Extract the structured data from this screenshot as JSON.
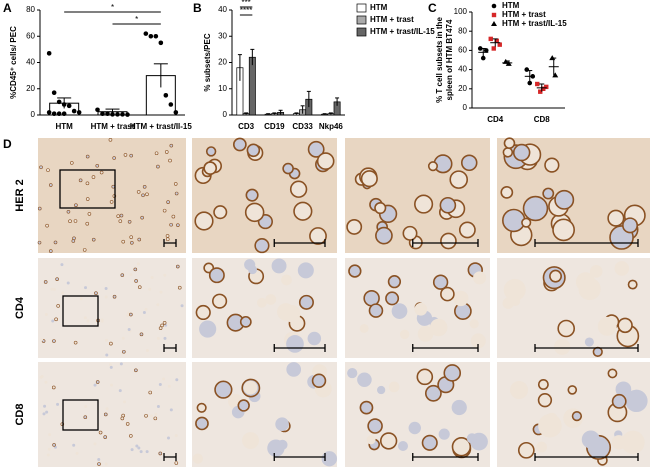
{
  "chart_data": [
    {
      "type": "bar",
      "panel": "A",
      "y_label": "%CD45⁺ cells/ PEC",
      "categories": [
        "HTM",
        "HTM + trast",
        "HTM + trast/Il-15"
      ],
      "values": [
        9,
        2.5,
        30
      ],
      "errors": [
        4,
        2,
        9
      ],
      "color": "#ffffff",
      "points": [
        [
          47,
          17,
          10,
          8,
          7,
          3,
          2,
          2,
          1,
          1,
          1
        ],
        [
          4,
          1,
          1,
          0.5,
          0.5,
          0.5,
          0.3
        ],
        [
          62,
          60,
          60,
          55,
          15,
          8,
          2
        ]
      ],
      "ylim": [
        0,
        80
      ],
      "yticks": [
        0,
        20,
        40,
        60,
        80
      ],
      "annotations": [
        "*",
        "*"
      ]
    },
    {
      "type": "bar",
      "panel": "B",
      "y_label": "% subsets/PEC",
      "categories": [
        "CD3",
        "CD19",
        "CD33",
        "Nkp46"
      ],
      "series": [
        {
          "name": "HTM",
          "color": "#ffffff",
          "values": [
            18,
            0.3,
            0.5,
            0.3
          ],
          "errors": [
            5,
            0.2,
            0.3,
            0.2
          ]
        },
        {
          "name": "HTM + trast",
          "color": "#aaaaaa",
          "values": [
            0.5,
            0.5,
            2,
            0.5
          ],
          "errors": [
            0.3,
            0.3,
            1.5,
            0.3
          ]
        },
        {
          "name": "HTM + trast/IL-15",
          "color": "#666666",
          "values": [
            22,
            1,
            6,
            5
          ],
          "errors": [
            3,
            0.8,
            3,
            1.5
          ]
        }
      ],
      "ylim": [
        0,
        40
      ],
      "yticks": [
        0,
        10,
        20,
        30,
        40
      ],
      "annotations": [
        "***",
        "****"
      ],
      "legend": "upper right"
    },
    {
      "type": "dot",
      "panel": "C",
      "y_label": [
        "% T cell subsets in the",
        "spleen of HTM BT474"
      ],
      "categories": [
        "CD4",
        "CD8"
      ],
      "series": [
        {
          "name": "HTM",
          "marker": "circle",
          "color": "#000000",
          "values": [
            58,
            33
          ],
          "errors": [
            4,
            6
          ],
          "points": [
            [
              62,
              52,
              60
            ],
            [
              40,
              26,
              33
            ]
          ]
        },
        {
          "name": "HTM + trast",
          "marker": "square",
          "color": "#d62728",
          "values": [
            68,
            21
          ],
          "errors": [
            4,
            4
          ],
          "points": [
            [
              72,
              62,
              70,
              66
            ],
            [
              25,
              17,
              20,
              22
            ]
          ]
        },
        {
          "name": "HTM + trast/IL-15",
          "marker": "triangle",
          "color": "#000000",
          "values": [
            47,
            43
          ],
          "errors": [
            2,
            9
          ],
          "points": [
            [
              48,
              46
            ],
            [
              52,
              34
            ]
          ]
        }
      ],
      "ylim": [
        0,
        100
      ],
      "yticks": [
        0,
        20,
        40,
        60,
        80,
        100
      ],
      "legend": "upper right"
    }
  ],
  "panel_d": {
    "label": "D",
    "rows": [
      "HER 2",
      "CD4",
      "CD8"
    ]
  }
}
